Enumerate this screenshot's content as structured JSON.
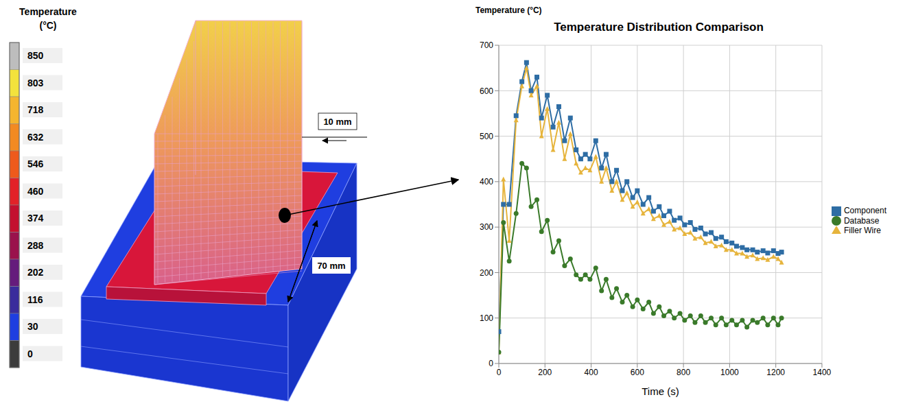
{
  "figure": {
    "colorbar": {
      "title": "Temperature (°C)",
      "ticks": [
        850,
        803,
        718,
        632,
        546,
        460,
        374,
        288,
        202,
        116,
        30,
        0
      ],
      "colors": [
        "#bdbdbd",
        "#f3e23c",
        "#f4b52e",
        "#f28a22",
        "#ee5a1c",
        "#e22228",
        "#c3102f",
        "#9a124c",
        "#651c7c",
        "#3a2c9c",
        "#1e3ee0",
        "#3c3c3c"
      ]
    },
    "dimensions": [
      "10 mm",
      "70 mm"
    ]
  },
  "chart_data": {
    "type": "line",
    "title": "Temperature Distribution Comparison",
    "x_label": "Time (s)",
    "y_label": "Temperature (°C)",
    "x": [
      0,
      20,
      45,
      75,
      100,
      120,
      140,
      165,
      185,
      210,
      235,
      260,
      285,
      310,
      335,
      355,
      375,
      395,
      420,
      445,
      465,
      490,
      510,
      535,
      555,
      580,
      600,
      625,
      650,
      670,
      695,
      715,
      740,
      760,
      785,
      805,
      830,
      850,
      875,
      895,
      920,
      940,
      965,
      985,
      1010,
      1030,
      1055,
      1075,
      1100,
      1120,
      1145,
      1165,
      1190,
      1210,
      1225
    ],
    "series": [
      {
        "name": "Component",
        "color": "#2e6da4",
        "marker": "square",
        "values": [
          70,
          350,
          350,
          545,
          620,
          662,
          600,
          630,
          540,
          590,
          520,
          565,
          490,
          540,
          470,
          450,
          460,
          450,
          490,
          430,
          460,
          400,
          425,
          380,
          400,
          365,
          380,
          350,
          365,
          335,
          345,
          325,
          335,
          315,
          320,
          305,
          310,
          295,
          298,
          285,
          288,
          275,
          278,
          268,
          265,
          258,
          255,
          250,
          250,
          245,
          248,
          243,
          248,
          242,
          245
        ]
      },
      {
        "name": "Filler Wire",
        "color": "#e6b43c",
        "marker": "triangle",
        "values": [
          25,
          405,
          270,
          535,
          610,
          650,
          590,
          610,
          500,
          560,
          470,
          530,
          450,
          505,
          440,
          420,
          430,
          425,
          455,
          400,
          430,
          380,
          400,
          360,
          375,
          345,
          355,
          330,
          340,
          318,
          325,
          305,
          312,
          295,
          298,
          285,
          288,
          275,
          278,
          265,
          268,
          258,
          260,
          250,
          250,
          242,
          242,
          235,
          238,
          230,
          232,
          228,
          235,
          230,
          222
        ]
      },
      {
        "name": "Database",
        "color": "#3a7a2a",
        "marker": "circle",
        "values": [
          25,
          310,
          225,
          330,
          440,
          430,
          345,
          360,
          290,
          315,
          245,
          270,
          215,
          230,
          195,
          185,
          195,
          185,
          210,
          160,
          185,
          145,
          165,
          135,
          150,
          125,
          140,
          120,
          135,
          110,
          125,
          105,
          115,
          100,
          110,
          95,
          105,
          90,
          105,
          90,
          100,
          85,
          100,
          85,
          95,
          85,
          95,
          80,
          95,
          90,
          100,
          85,
          100,
          85,
          100
        ]
      }
    ],
    "xlim": [
      0,
      1400
    ],
    "xticks": [
      0,
      200,
      400,
      600,
      800,
      1000,
      1200,
      1400
    ],
    "ylim": [
      0,
      700
    ],
    "yticks": [
      0,
      100,
      200,
      300,
      400,
      500,
      600,
      700
    ],
    "grid": true,
    "legend": "right"
  }
}
